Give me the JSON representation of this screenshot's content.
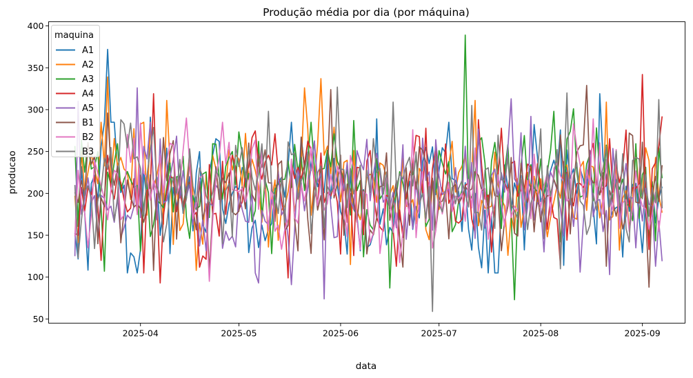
{
  "chart_data": {
    "type": "line",
    "title": "Produção média por dia (por máquina)",
    "xlabel": "data",
    "ylabel": "producao",
    "x_start": "2025-03-12",
    "x_end": "2025-09-07",
    "xlim": [
      "2025-03-04",
      "2025-09-14"
    ],
    "ylim": [
      45,
      405
    ],
    "x_ticks": [
      "2025-04",
      "2025-05",
      "2025-06",
      "2025-07",
      "2025-08",
      "2025-09"
    ],
    "y_ticks": [
      50,
      100,
      150,
      200,
      250,
      300,
      350,
      400
    ],
    "legend": {
      "title": "maquina",
      "position": "top-left"
    },
    "grid": false,
    "series": [
      {
        "name": "A1",
        "color": "#1f77b4",
        "anchors": [
          [
            0,
            170
          ],
          [
            7,
            165
          ],
          [
            10,
            372
          ],
          [
            14,
            200
          ],
          [
            18,
            130
          ],
          [
            23,
            230
          ],
          [
            30,
            180
          ],
          [
            42,
            220
          ],
          [
            55,
            150
          ],
          [
            70,
            240
          ],
          [
            82,
            180
          ],
          [
            95,
            160
          ],
          [
            110,
            250
          ],
          [
            120,
            180
          ],
          [
            127,
            140
          ],
          [
            133,
            200
          ],
          [
            145,
            250
          ],
          [
            160,
            180
          ],
          [
            175,
            190
          ],
          [
            179,
            210
          ]
        ],
        "peaks": [
          [
            10,
            372
          ],
          [
            23,
            291
          ],
          [
            29,
            128
          ],
          [
            92,
            289
          ],
          [
            103,
            157
          ],
          [
            149,
            114
          ],
          [
            160,
            319
          ],
          [
            179,
            208
          ]
        ]
      },
      {
        "name": "A2",
        "color": "#ff7f0e",
        "anchors": [
          [
            0,
            180
          ],
          [
            8,
            250
          ],
          [
            13,
            225
          ],
          [
            19,
            250
          ],
          [
            28,
            205
          ],
          [
            37,
            190
          ],
          [
            50,
            230
          ],
          [
            62,
            195
          ],
          [
            75,
            230
          ],
          [
            90,
            210
          ],
          [
            105,
            185
          ],
          [
            120,
            220
          ],
          [
            135,
            175
          ],
          [
            150,
            215
          ],
          [
            165,
            200
          ],
          [
            179,
            205
          ]
        ],
        "peaks": [
          [
            2,
            250
          ],
          [
            10,
            339
          ],
          [
            28,
            311
          ],
          [
            37,
            108
          ],
          [
            70,
            326
          ],
          [
            75,
            337
          ],
          [
            84,
            115
          ],
          [
            122,
            311
          ],
          [
            132,
            126
          ],
          [
            162,
            309
          ]
        ]
      },
      {
        "name": "A3",
        "color": "#2ca02c",
        "anchors": [
          [
            0,
            205
          ],
          [
            10,
            235
          ],
          [
            20,
            180
          ],
          [
            32,
            210
          ],
          [
            45,
            220
          ],
          [
            60,
            200
          ],
          [
            75,
            240
          ],
          [
            88,
            185
          ],
          [
            100,
            210
          ],
          [
            115,
            195
          ],
          [
            130,
            230
          ],
          [
            145,
            205
          ],
          [
            160,
            220
          ],
          [
            179,
            200
          ]
        ],
        "peaks": [
          [
            9,
            107
          ],
          [
            20,
            131
          ],
          [
            48,
            250
          ],
          [
            85,
            287
          ],
          [
            96,
            87
          ],
          [
            119,
            389
          ],
          [
            134,
            73
          ],
          [
            146,
            298
          ],
          [
            152,
            301
          ]
        ]
      },
      {
        "name": "A4",
        "color": "#d62728",
        "anchors": [
          [
            0,
            190
          ],
          [
            12,
            205
          ],
          [
            24,
            215
          ],
          [
            36,
            185
          ],
          [
            50,
            210
          ],
          [
            63,
            200
          ],
          [
            78,
            215
          ],
          [
            92,
            195
          ],
          [
            105,
            220
          ],
          [
            120,
            190
          ],
          [
            135,
            220
          ],
          [
            150,
            200
          ],
          [
            165,
            225
          ],
          [
            179,
            210
          ]
        ],
        "peaks": [
          [
            1,
            150
          ],
          [
            8,
            120
          ],
          [
            21,
            105
          ],
          [
            24,
            319
          ],
          [
            26,
            93
          ],
          [
            65,
            99
          ],
          [
            98,
            113
          ],
          [
            123,
            288
          ],
          [
            148,
            114
          ],
          [
            173,
            342
          ],
          [
            175,
            133
          ],
          [
            179,
            292
          ]
        ]
      },
      {
        "name": "A5",
        "color": "#9467bd",
        "anchors": [
          [
            0,
            180
          ],
          [
            12,
            170
          ],
          [
            25,
            210
          ],
          [
            40,
            180
          ],
          [
            55,
            165
          ],
          [
            70,
            200
          ],
          [
            85,
            220
          ],
          [
            100,
            190
          ],
          [
            115,
            210
          ],
          [
            130,
            220
          ],
          [
            140,
            190
          ],
          [
            155,
            200
          ],
          [
            170,
            185
          ],
          [
            179,
            175
          ]
        ],
        "peaks": [
          [
            0,
            125
          ],
          [
            1,
            310
          ],
          [
            19,
            326
          ],
          [
            56,
            93
          ],
          [
            66,
            91
          ],
          [
            76,
            74
          ],
          [
            106,
            266
          ],
          [
            133,
            313
          ],
          [
            139,
            292
          ],
          [
            154,
            106
          ],
          [
            163,
            103
          ],
          [
            177,
            113
          ],
          [
            179,
            119
          ]
        ]
      },
      {
        "name": "B1",
        "color": "#8c564b",
        "anchors": [
          [
            0,
            170
          ],
          [
            9,
            210
          ],
          [
            18,
            200
          ],
          [
            30,
            195
          ],
          [
            45,
            190
          ],
          [
            60,
            205
          ],
          [
            75,
            200
          ],
          [
            90,
            185
          ],
          [
            105,
            205
          ],
          [
            120,
            200
          ],
          [
            135,
            180
          ],
          [
            150,
            220
          ],
          [
            165,
            210
          ],
          [
            179,
            200
          ]
        ],
        "peaks": [
          [
            4,
            260
          ],
          [
            10,
            296
          ],
          [
            24,
            108
          ],
          [
            30,
            263
          ],
          [
            41,
            108
          ],
          [
            78,
            324
          ],
          [
            100,
            112
          ],
          [
            156,
            329
          ],
          [
            162,
            113
          ],
          [
            169,
            272
          ],
          [
            175,
            88
          ]
        ]
      },
      {
        "name": "B2",
        "color": "#e377c2",
        "anchors": [
          [
            0,
            145
          ],
          [
            8,
            190
          ],
          [
            18,
            205
          ],
          [
            32,
            215
          ],
          [
            46,
            220
          ],
          [
            60,
            190
          ],
          [
            75,
            205
          ],
          [
            90,
            180
          ],
          [
            100,
            160
          ],
          [
            115,
            200
          ],
          [
            130,
            180
          ],
          [
            145,
            200
          ],
          [
            160,
            215
          ],
          [
            179,
            190
          ]
        ],
        "peaks": [
          [
            4,
            135
          ],
          [
            20,
            284
          ],
          [
            34,
            290
          ],
          [
            41,
            95
          ],
          [
            45,
            285
          ],
          [
            52,
            190
          ],
          [
            103,
            276
          ],
          [
            158,
            289
          ],
          [
            178,
            155
          ]
        ]
      },
      {
        "name": "B3",
        "color": "#7f7f7f",
        "anchors": [
          [
            0,
            200
          ],
          [
            6,
            175
          ],
          [
            15,
            230
          ],
          [
            30,
            200
          ],
          [
            45,
            210
          ],
          [
            60,
            225
          ],
          [
            75,
            205
          ],
          [
            90,
            215
          ],
          [
            102,
            195
          ],
          [
            115,
            200
          ],
          [
            130,
            205
          ],
          [
            145,
            200
          ],
          [
            160,
            215
          ],
          [
            179,
            190
          ]
        ],
        "peaks": [
          [
            0,
            210
          ],
          [
            1,
            123
          ],
          [
            14,
            288
          ],
          [
            59,
            298
          ],
          [
            80,
            327
          ],
          [
            97,
            309
          ],
          [
            109,
            59
          ],
          [
            121,
            305
          ],
          [
            148,
            110
          ],
          [
            150,
            320
          ],
          [
            178,
            312
          ]
        ]
      }
    ]
  }
}
